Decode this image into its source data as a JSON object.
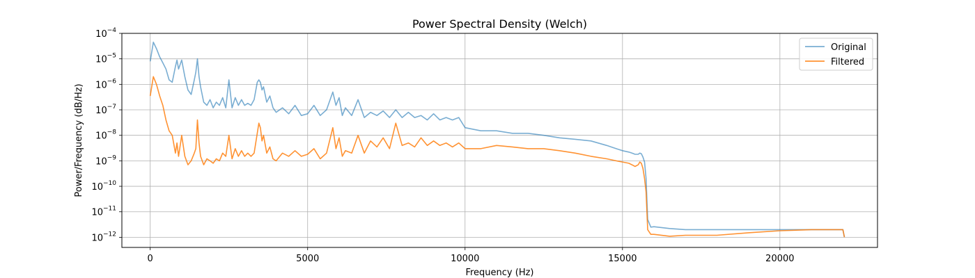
{
  "chart_data": {
    "type": "line",
    "title": "Power Spectral Density (Welch)",
    "xlabel": "Frequency (Hz)",
    "ylabel": "Power/Frequency (dB/Hz)",
    "yscale": "log",
    "xlim": [
      -900,
      23100
    ],
    "ylim": [
      4e-13,
      0.0001
    ],
    "xticks": [
      0,
      5000,
      10000,
      15000,
      20000
    ],
    "xtick_labels": [
      "0",
      "5000",
      "10000",
      "15000",
      "20000"
    ],
    "yticks": [
      1e-12,
      1e-11,
      1e-10,
      1e-09,
      1e-08,
      1e-07,
      1e-06,
      1e-05,
      0.0001
    ],
    "ytick_bases": [
      "10",
      "10",
      "10",
      "10",
      "10",
      "10",
      "10",
      "10",
      "10"
    ],
    "ytick_exponents": [
      "−12",
      "−11",
      "−10",
      "−9",
      "−8",
      "−7",
      "−6",
      "−5",
      "−4"
    ],
    "grid": true,
    "legend": {
      "position": "top-right",
      "entries": [
        "Original",
        "Filtered"
      ]
    },
    "colors": {
      "original": "#1f77b4",
      "filtered": "#ff7f0e"
    },
    "series": [
      {
        "name": "Original",
        "color": "#1f77b4",
        "opacity": 0.6,
        "x": [
          0,
          100,
          200,
          300,
          400,
          500,
          600,
          700,
          800,
          850,
          900,
          1000,
          1100,
          1200,
          1300,
          1400,
          1450,
          1500,
          1550,
          1600,
          1700,
          1800,
          1900,
          2000,
          2100,
          2200,
          2300,
          2400,
          2500,
          2600,
          2700,
          2800,
          2900,
          3000,
          3100,
          3200,
          3300,
          3400,
          3450,
          3500,
          3550,
          3600,
          3700,
          3800,
          3900,
          4000,
          4200,
          4400,
          4600,
          4800,
          5000,
          5200,
          5400,
          5600,
          5800,
          5900,
          6000,
          6100,
          6200,
          6400,
          6600,
          6800,
          7000,
          7200,
          7400,
          7600,
          7800,
          8000,
          8200,
          8400,
          8600,
          8800,
          9000,
          9200,
          9400,
          9600,
          9800,
          10000,
          10500,
          11000,
          11500,
          12000,
          12500,
          13000,
          13500,
          14000,
          14500,
          14800,
          15000,
          15200,
          15300,
          15400,
          15500,
          15550,
          15600,
          15650,
          15700,
          15750,
          15800,
          15900,
          16000,
          16500,
          17000,
          18000,
          19000,
          20000,
          21000,
          21500,
          22000,
          22050
        ],
        "y": [
          8e-06,
          4.5e-05,
          2.5e-05,
          1.2e-05,
          7e-06,
          4e-06,
          1.5e-06,
          1.2e-06,
          5e-06,
          9e-06,
          4e-06,
          9e-06,
          2e-06,
          6e-07,
          4e-07,
          1.5e-06,
          3e-06,
          1e-05,
          2e-06,
          8e-07,
          2e-07,
          1.5e-07,
          2.5e-07,
          1.2e-07,
          2e-07,
          1.5e-07,
          3e-07,
          1.2e-07,
          1.5e-06,
          1.2e-07,
          3e-07,
          1.5e-07,
          2.5e-07,
          1.5e-07,
          1.8e-07,
          1.5e-07,
          2.5e-07,
          1.2e-06,
          1.5e-06,
          1.2e-06,
          6e-07,
          8e-07,
          2e-07,
          3.5e-07,
          1.2e-07,
          8e-08,
          1.2e-07,
          7e-08,
          1.5e-07,
          6e-08,
          7e-08,
          1.5e-07,
          6e-08,
          1e-07,
          5e-07,
          1.5e-07,
          3e-07,
          6e-08,
          1.2e-07,
          6e-08,
          2.5e-07,
          5e-08,
          8e-08,
          6e-08,
          9e-08,
          5e-08,
          1e-07,
          5e-08,
          8e-08,
          5e-08,
          6e-08,
          4e-08,
          7e-08,
          4e-08,
          5e-08,
          4e-08,
          5e-08,
          2e-08,
          1.5e-08,
          1.5e-08,
          1.2e-08,
          1.2e-08,
          1e-08,
          8e-09,
          7e-09,
          6e-09,
          4e-09,
          3e-09,
          2.5e-09,
          2.2e-09,
          2e-09,
          1.8e-09,
          1.8e-09,
          2e-09,
          1.9e-09,
          1.4e-09,
          9e-10,
          2e-10,
          5e-12,
          2.5e-12,
          2.6e-12,
          2.2e-12,
          2e-12,
          2e-12,
          2e-12,
          2e-12,
          2e-12,
          2e-12,
          2e-12,
          1e-12
        ]
      },
      {
        "name": "Filtered",
        "color": "#ff7f0e",
        "opacity": 0.85,
        "x": [
          0,
          100,
          200,
          300,
          400,
          500,
          600,
          700,
          800,
          850,
          900,
          1000,
          1100,
          1200,
          1300,
          1400,
          1450,
          1500,
          1550,
          1600,
          1700,
          1800,
          1900,
          2000,
          2100,
          2200,
          2300,
          2400,
          2500,
          2600,
          2700,
          2800,
          2900,
          3000,
          3100,
          3200,
          3300,
          3400,
          3450,
          3500,
          3550,
          3600,
          3700,
          3800,
          3900,
          4000,
          4200,
          4400,
          4600,
          4800,
          5000,
          5200,
          5400,
          5600,
          5800,
          5900,
          6000,
          6100,
          6200,
          6400,
          6600,
          6800,
          7000,
          7200,
          7400,
          7600,
          7800,
          8000,
          8200,
          8400,
          8600,
          8800,
          9000,
          9200,
          9400,
          9600,
          9800,
          10000,
          10500,
          11000,
          11500,
          12000,
          12500,
          13000,
          13500,
          14000,
          14500,
          14800,
          15000,
          15200,
          15300,
          15400,
          15500,
          15550,
          15600,
          15650,
          15700,
          15750,
          15800,
          15900,
          16000,
          16500,
          17000,
          18000,
          19000,
          20000,
          21000,
          21500,
          22000,
          22050
        ],
        "y": [
          3.5e-07,
          2e-06,
          1e-06,
          3.5e-07,
          1.5e-07,
          4e-08,
          1.5e-08,
          1e-08,
          2e-09,
          5e-09,
          1.5e-09,
          1e-08,
          1.5e-09,
          7e-10,
          1e-09,
          2e-09,
          3e-09,
          4e-08,
          5e-09,
          1.5e-09,
          7e-10,
          1.2e-09,
          1e-09,
          8e-10,
          1.2e-09,
          1e-09,
          2e-09,
          1.5e-09,
          1e-08,
          1.2e-09,
          3e-09,
          1.5e-09,
          2.5e-09,
          1.5e-09,
          2e-09,
          1.5e-09,
          2e-09,
          1.2e-08,
          3e-08,
          2e-08,
          6e-09,
          1e-08,
          2e-09,
          3.5e-09,
          1.2e-09,
          1e-09,
          2e-09,
          1.5e-09,
          2.5e-09,
          1.5e-09,
          1.8e-09,
          3e-09,
          1.2e-09,
          2e-09,
          2e-08,
          3e-09,
          8e-09,
          1.5e-09,
          2.5e-09,
          2e-09,
          1e-08,
          2e-09,
          6e-09,
          3.5e-09,
          8e-09,
          3e-09,
          3e-08,
          4e-09,
          5e-09,
          3.5e-09,
          8e-09,
          4e-09,
          6e-09,
          4e-09,
          5e-09,
          3.5e-09,
          5e-09,
          3e-09,
          3e-09,
          4e-09,
          3.5e-09,
          3e-09,
          3e-09,
          2.5e-09,
          2e-09,
          1.5e-09,
          1.2e-09,
          1e-09,
          9e-10,
          8e-10,
          7e-10,
          6e-10,
          7e-10,
          9e-10,
          8e-10,
          5e-10,
          2e-10,
          6e-11,
          2e-12,
          1.3e-12,
          1.3e-12,
          1.1e-12,
          1.2e-12,
          1.2e-12,
          1.5e-12,
          1.8e-12,
          2e-12,
          2e-12,
          2e-12,
          1e-12
        ]
      }
    ]
  }
}
